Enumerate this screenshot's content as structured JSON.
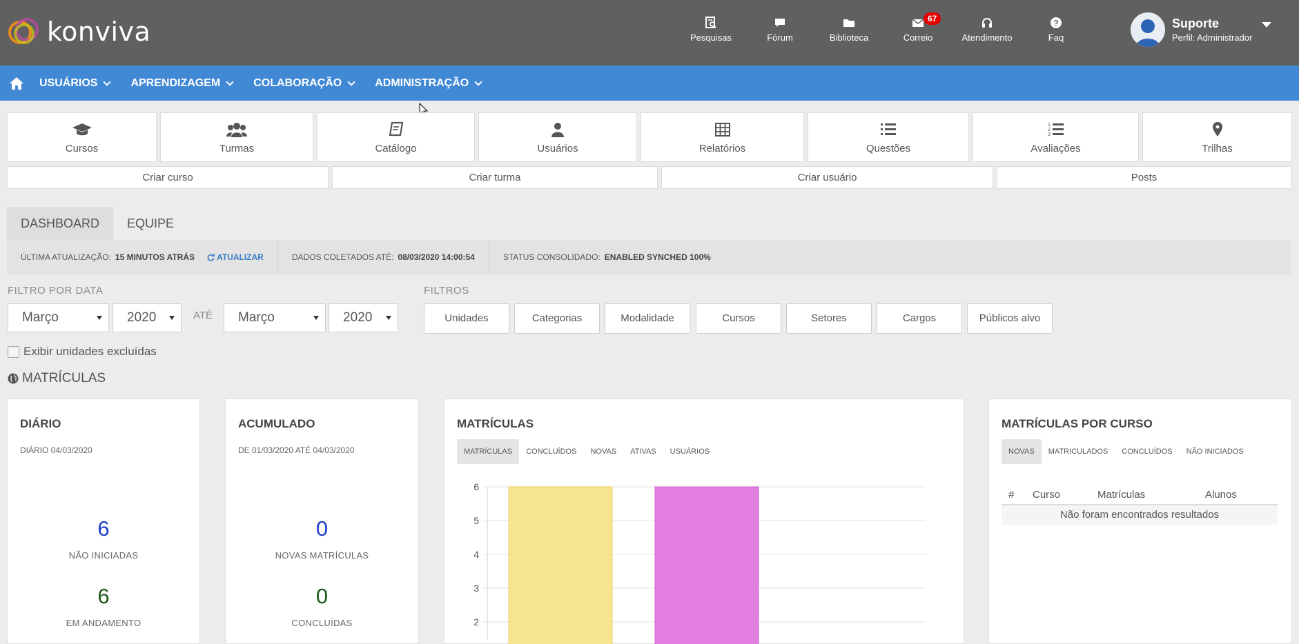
{
  "brand": {
    "name": "konviva"
  },
  "topnav": [
    {
      "label": "Pesquisas",
      "icon": "survey-icon"
    },
    {
      "label": "Fórum",
      "icon": "comment-icon"
    },
    {
      "label": "Biblioteca",
      "icon": "folder-icon"
    },
    {
      "label": "Correio",
      "icon": "mail-icon",
      "badge": "67"
    },
    {
      "label": "Atendimento",
      "icon": "headset-icon"
    },
    {
      "label": "Faq",
      "icon": "question-icon"
    }
  ],
  "user": {
    "name": "Suporte",
    "role": "Perfil: Administrador"
  },
  "menu": [
    "USUÁRIOS",
    "APRENDIZAGEM",
    "COLABORAÇÃO",
    "ADMINISTRAÇÃO"
  ],
  "tiles": [
    {
      "label": "Cursos",
      "icon": "graduation-cap-icon"
    },
    {
      "label": "Turmas",
      "icon": "users-icon"
    },
    {
      "label": "Catálogo",
      "icon": "book-icon"
    },
    {
      "label": "Usuários",
      "icon": "user-icon"
    },
    {
      "label": "Relatórios",
      "icon": "table-icon"
    },
    {
      "label": "Questões",
      "icon": "list-icon"
    },
    {
      "label": "Avaliações",
      "icon": "numbered-list-icon"
    },
    {
      "label": "Trilhas",
      "icon": "map-marker-icon"
    }
  ],
  "actions": [
    "Criar curso",
    "Criar turma",
    "Criar usuário",
    "Posts"
  ],
  "tabs": [
    "DASHBOARD",
    "EQUIPE"
  ],
  "status": {
    "last_update_label": "ÚLTIMA ATUALIZAÇÃO:",
    "last_update_value": "15 MINUTOS ATRÁS",
    "refresh_label": "ATUALIZAR",
    "collected_label": "DADOS COLETADOS ATÉ:",
    "collected_value": "08/03/2020 14:00:54",
    "consolidated_label": "STATUS CONSOLIDADO:",
    "consolidated_value": "ENABLED SYNCHED 100%"
  },
  "filters": {
    "date_label": "FILTRO POR DATA",
    "from_month": "Março",
    "from_year": "2020",
    "until_label": "ATÉ",
    "to_month": "Março",
    "to_year": "2020",
    "filters_label": "FILTROS",
    "buttons": [
      "Unidades",
      "Categorias",
      "Modalidade",
      "Cursos",
      "Setores",
      "Cargos",
      "Públicos alvo"
    ],
    "show_deleted_label": "Exibir unidades excluídas"
  },
  "section_title": "MATRÍCULAS",
  "daily": {
    "title": "DIÁRIO",
    "subtitle": "DIÁRIO 04/03/2020",
    "v1": "6",
    "l1": "NÃO INICIADAS",
    "v2": "6",
    "l2": "EM ANDAMENTO"
  },
  "cumulative": {
    "title": "ACUMULADO",
    "subtitle": "DE 01/03/2020 ATÉ 04/03/2020",
    "v1": "0",
    "l1": "NOVAS MATRÍCULAS",
    "v2": "0",
    "l2": "CONCLUÍDAS"
  },
  "enroll_chart": {
    "title": "MATRÍCULAS",
    "pills": [
      "MATRÍCULAS",
      "CONCLUÍDOS",
      "NOVAS",
      "ATIVAS",
      "USUÁRIOS"
    ]
  },
  "chart_data": {
    "type": "bar",
    "title": "",
    "xlabel": "",
    "ylabel": "",
    "ylim": [
      0,
      6
    ],
    "yticks": [
      "6",
      "5",
      "4",
      "3",
      "2"
    ],
    "visible_ymin": 1.45,
    "grid": true,
    "series": [
      {
        "values": [
          6
        ],
        "color": "#f6e491",
        "stroke": "#e6d070"
      },
      {
        "values": [
          6
        ],
        "color": "#e27fe0",
        "stroke": "#c966c7"
      }
    ]
  },
  "by_course": {
    "title": "MATRÍCULAS POR CURSO",
    "pills": [
      "NOVAS",
      "MATRICULADOS",
      "CONCLUÍDOS",
      "NÃO INICIADOS"
    ],
    "columns": [
      "#",
      "Curso",
      "Matrículas",
      "Alunos"
    ],
    "empty": "Não foram encontrados resultados"
  },
  "colors": {
    "header": "#606060",
    "menu": "#4189d5",
    "blue_value": "#1f3fc9",
    "green_value": "#1a5b1a"
  }
}
